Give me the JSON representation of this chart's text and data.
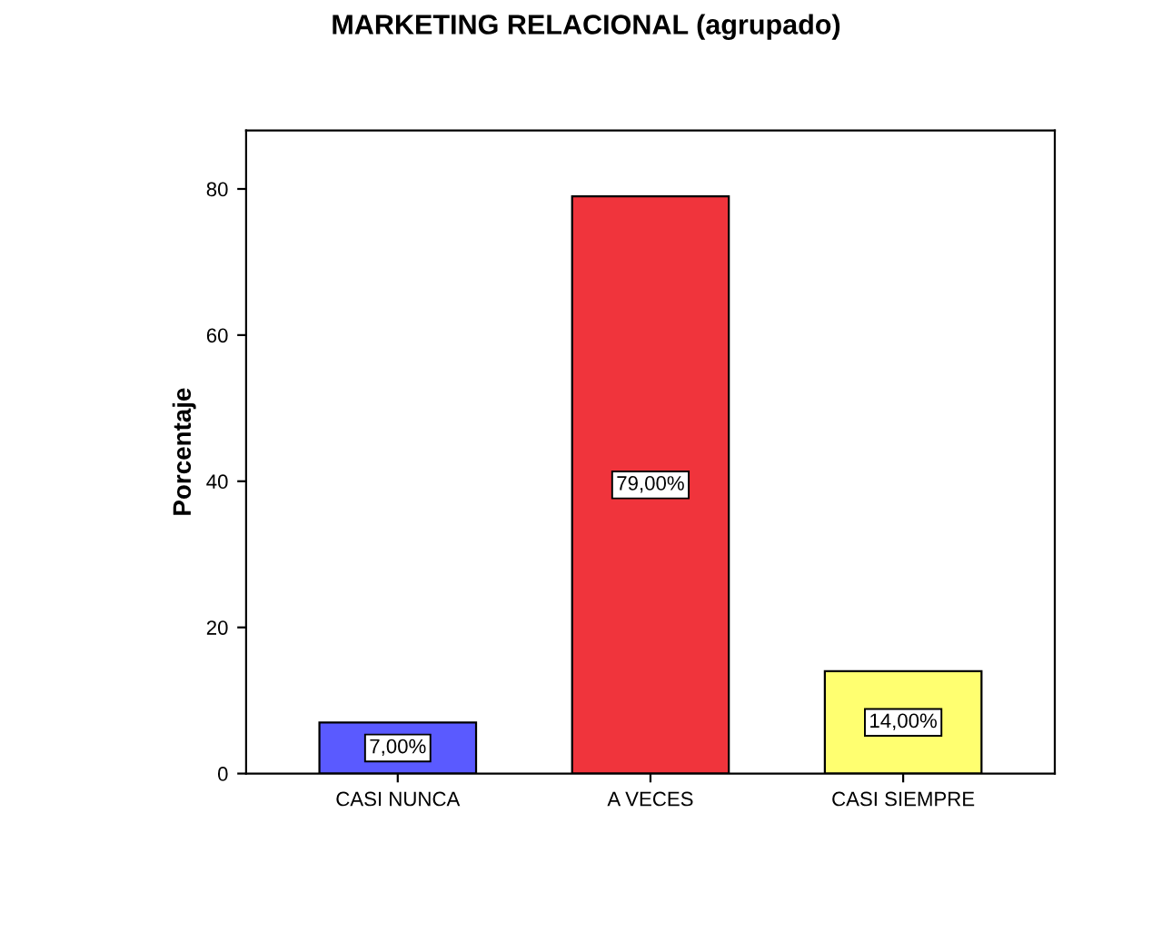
{
  "chart_data": {
    "type": "bar",
    "title": "MARKETING RELACIONAL (agrupado)",
    "ylabel": "Porcentaje",
    "categories": [
      "CASI NUNCA",
      "A VECES",
      "CASI SIEMPRE"
    ],
    "values": [
      7,
      79,
      14
    ],
    "colors": [
      "#5a5aff",
      "#f0343c",
      "#ffff70"
    ],
    "value_labels": [
      "7,00%",
      "79,00%",
      "14,00%"
    ],
    "ylim": [
      0,
      88
    ],
    "yticks": [
      0,
      20,
      40,
      60,
      80
    ],
    "grid": false
  }
}
